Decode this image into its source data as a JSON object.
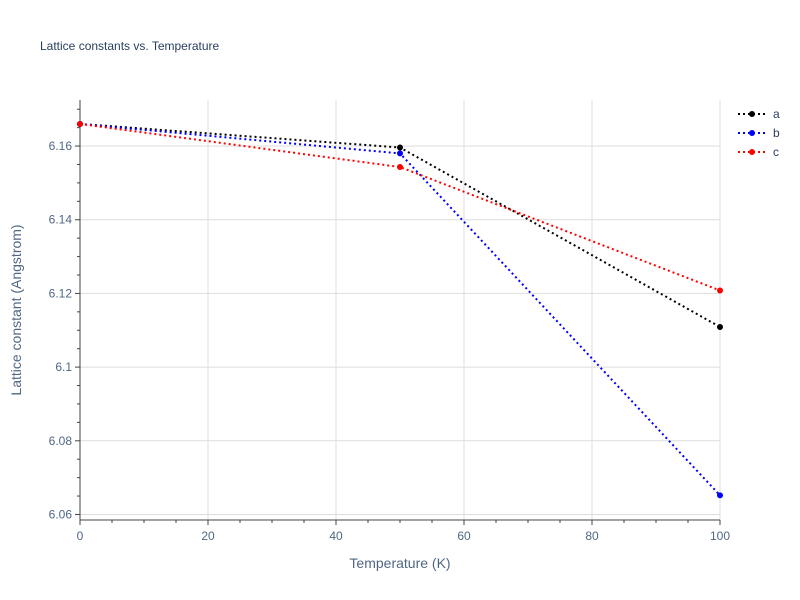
{
  "chart_data": {
    "type": "line",
    "title": "Lattice constants vs. Temperature",
    "xlabel": "Temperature (K)",
    "ylabel": "Lattice constant (Angstrom)",
    "xlim": [
      0,
      100
    ],
    "ylim": [
      6.0585,
      6.1725
    ],
    "x_ticks": [
      0,
      20,
      40,
      60,
      80,
      100
    ],
    "x_tick_labels": [
      "0",
      "20",
      "40",
      "60",
      "80",
      "100"
    ],
    "y_ticks": [
      6.06,
      6.08,
      6.1,
      6.12,
      6.14,
      6.16
    ],
    "y_tick_labels": [
      "6.06",
      "6.08",
      "6.1",
      "6.12",
      "6.14",
      "6.16"
    ],
    "grid": true,
    "legend_position": "top-right",
    "series": [
      {
        "name": "a",
        "color": "#000000",
        "line_style": "dotted",
        "x": [
          0,
          50,
          100
        ],
        "y": [
          6.166,
          6.1596,
          6.1109
        ]
      },
      {
        "name": "b",
        "color": "#0000ff",
        "line_style": "dotted",
        "x": [
          0,
          50,
          100
        ],
        "y": [
          6.166,
          6.158,
          6.0652
        ]
      },
      {
        "name": "c",
        "color": "#ff0000",
        "line_style": "dotted",
        "x": [
          0,
          50,
          100
        ],
        "y": [
          6.166,
          6.1543,
          6.1208
        ]
      }
    ]
  }
}
